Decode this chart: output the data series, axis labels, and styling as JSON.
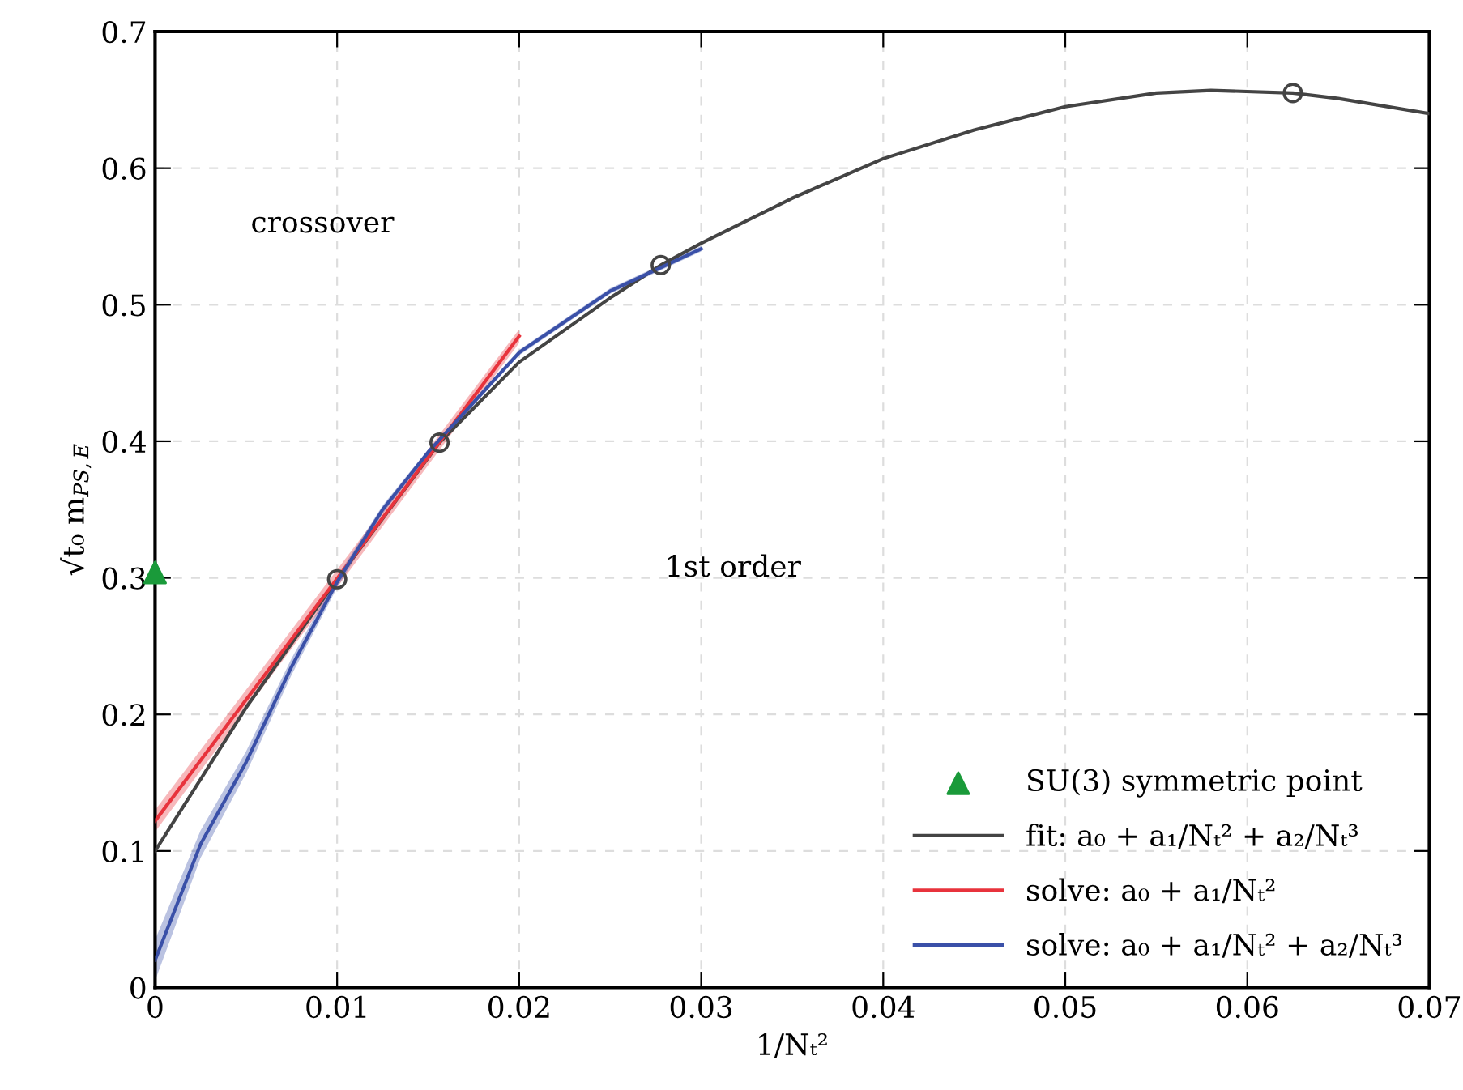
{
  "chart_data": {
    "type": "line",
    "xlabel": "1/Nₜ²",
    "ylabel": "√t₀ m$_{PS,E}$",
    "xlim": [
      0,
      0.07
    ],
    "ylim": [
      0,
      0.7
    ],
    "xticks": [
      0,
      0.01,
      0.02,
      0.03,
      0.04,
      0.05,
      0.06,
      0.07
    ],
    "yticks": [
      0,
      0.1,
      0.2,
      0.3,
      0.4,
      0.5,
      0.6,
      0.7
    ],
    "grid": true,
    "legend": "bottom right",
    "annotations": [
      "crossover",
      "1st order"
    ],
    "series": [
      {
        "type": "scatter",
        "name": "SU(3) symmetric point",
        "color": "#1a9a3a",
        "marker": "triangle",
        "x": [
          0
        ],
        "values": [
          0.304
        ]
      },
      {
        "name": "fit: a₀ + a₁/Nₜ² + a₂/Nₜ³",
        "color": "#444444",
        "x": [
          0,
          0.005,
          0.01,
          0.015625,
          0.02,
          0.025,
          0.02778,
          0.03,
          0.035,
          0.04,
          0.045,
          0.05,
          0.055,
          0.058,
          0.0625,
          0.065,
          0.07
        ],
        "values": [
          0.1,
          0.205,
          0.299,
          0.399,
          0.458,
          0.505,
          0.529,
          0.545,
          0.578,
          0.607,
          0.628,
          0.645,
          0.655,
          0.657,
          0.655,
          0.651,
          0.64
        ]
      },
      {
        "name": "solve: a₀ + a₁/Nₜ²",
        "color": "#e8333c",
        "x": [
          0,
          0.02
        ],
        "values": [
          0.122,
          0.477
        ],
        "lower": [
          0.114,
          0.472
        ],
        "upper": [
          0.13,
          0.482
        ]
      },
      {
        "name": "solve: a₀ + a₁/Nₜ² + a₂/Nₜ³",
        "color": "#3a50a8",
        "x": [
          0,
          0.0025,
          0.005,
          0.0075,
          0.01,
          0.0125,
          0.015,
          0.02,
          0.025,
          0.03
        ],
        "values": [
          0.02,
          0.105,
          0.165,
          0.235,
          0.297,
          0.35,
          0.392,
          0.465,
          0.51,
          0.541
        ],
        "lower": [
          0.005,
          0.095,
          0.157,
          0.229,
          0.293,
          0.347,
          0.39,
          0.463,
          0.508,
          0.539
        ],
        "upper": [
          0.035,
          0.115,
          0.173,
          0.241,
          0.301,
          0.353,
          0.394,
          0.467,
          0.512,
          0.543
        ]
      },
      {
        "type": "scatter",
        "color": "#444444",
        "marker": "circle",
        "x": [
          0.01,
          0.015625,
          0.02778,
          0.0625
        ],
        "values": [
          0.299,
          0.399,
          0.529,
          0.655
        ]
      }
    ]
  }
}
